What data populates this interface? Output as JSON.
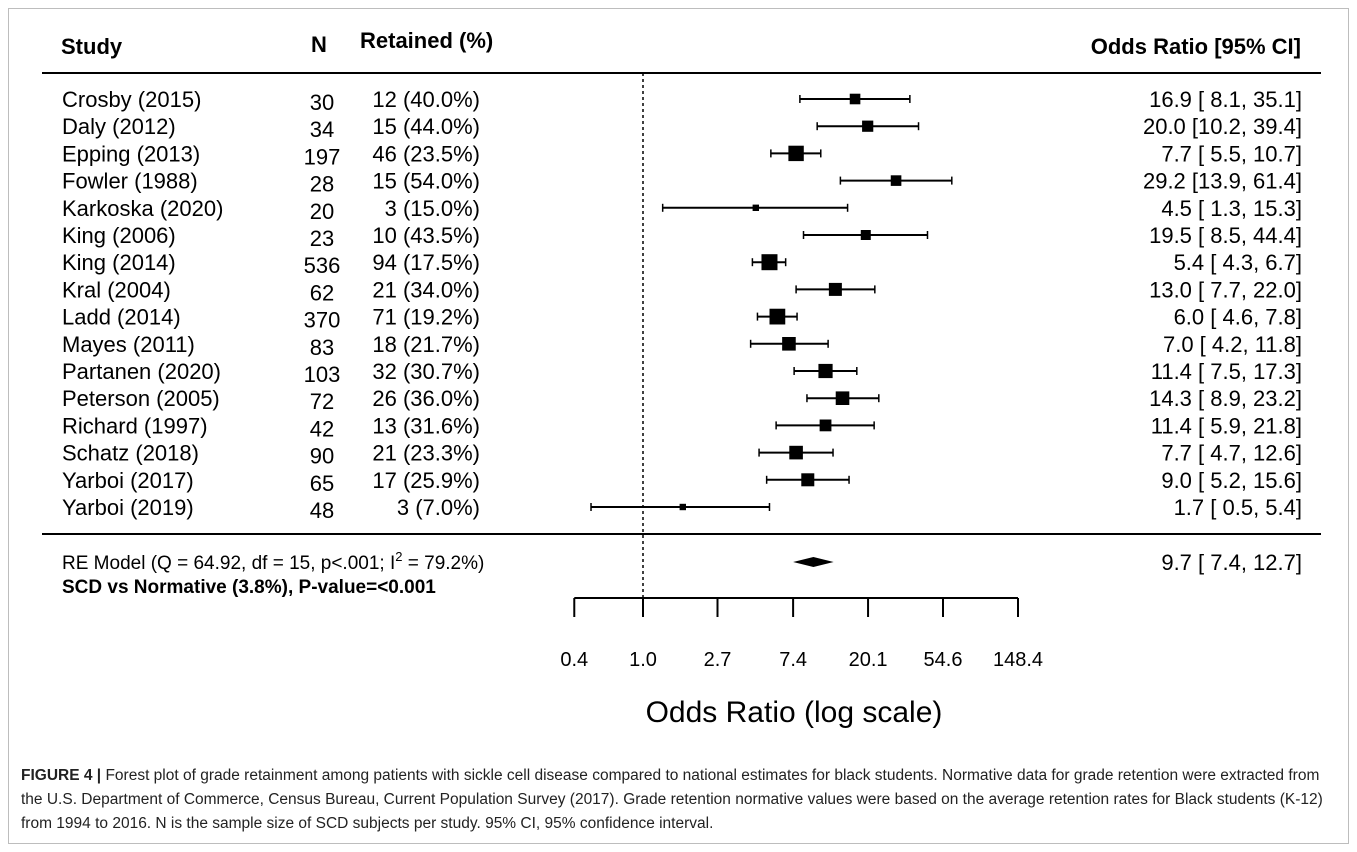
{
  "chart_data": {
    "type": "forest",
    "xscale": "log",
    "header": {
      "study": "Study",
      "n": "N",
      "retained": "Retained (%)",
      "or_ci": "Odds Ratio [95% CI]"
    },
    "studies": [
      {
        "study": "Crosby (2015)",
        "n": "30",
        "retained": "12 (40.0%)",
        "or": 16.9,
        "lo": 8.1,
        "hi": 35.1,
        "label": "16.9 [ 8.1, 35.1]",
        "weight": 0.55
      },
      {
        "study": "Daly (2012)",
        "n": "34",
        "retained": "15 (44.0%)",
        "or": 20.0,
        "lo": 10.2,
        "hi": 39.4,
        "label": "20.0 [10.2, 39.4]",
        "weight": 0.6
      },
      {
        "study": "Epping (2013)",
        "n": "197",
        "retained": "46 (23.5%)",
        "or": 7.7,
        "lo": 5.5,
        "hi": 10.7,
        "label": "7.7 [ 5.5, 10.7]",
        "weight": 0.95
      },
      {
        "study": "Fowler (1988)",
        "n": "28",
        "retained": "15 (54.0%)",
        "or": 29.2,
        "lo": 13.9,
        "hi": 61.4,
        "label": "29.2 [13.9, 61.4]",
        "weight": 0.55
      },
      {
        "study": "Karkoska (2020)",
        "n": "20",
        "retained": "3 (15.0%)",
        "or": 4.5,
        "lo": 1.3,
        "hi": 15.3,
        "label": "4.5 [ 1.3, 15.3]",
        "weight": 0.2
      },
      {
        "study": "King (2006)",
        "n": "23",
        "retained": "10 (43.5%)",
        "or": 19.5,
        "lo": 8.5,
        "hi": 44.4,
        "label": "19.5 [ 8.5, 44.4]",
        "weight": 0.5
      },
      {
        "study": "King (2014)",
        "n": "536",
        "retained": "94 (17.5%)",
        "or": 5.4,
        "lo": 4.3,
        "hi": 6.7,
        "label": "5.4 [ 4.3, 6.7]",
        "weight": 1.0
      },
      {
        "study": "Kral (2004)",
        "n": "62",
        "retained": "21 (34.0%)",
        "or": 13.0,
        "lo": 7.7,
        "hi": 22.0,
        "label": "13.0 [ 7.7, 22.0]",
        "weight": 0.75
      },
      {
        "study": "Ladd (2014)",
        "n": "370",
        "retained": "71 (19.2%)",
        "or": 6.0,
        "lo": 4.6,
        "hi": 7.8,
        "label": "6.0 [ 4.6, 7.8]",
        "weight": 0.98
      },
      {
        "study": "Mayes (2011)",
        "n": "83",
        "retained": "18 (21.7%)",
        "or": 7.0,
        "lo": 4.2,
        "hi": 11.8,
        "label": "7.0 [ 4.2, 11.8]",
        "weight": 0.8
      },
      {
        "study": "Partanen (2020)",
        "n": "103",
        "retained": "32 (30.7%)",
        "or": 11.4,
        "lo": 7.5,
        "hi": 17.3,
        "label": "11.4 [ 7.5, 17.3]",
        "weight": 0.85
      },
      {
        "study": "Peterson (2005)",
        "n": "72",
        "retained": "26 (36.0%)",
        "or": 14.3,
        "lo": 8.9,
        "hi": 23.2,
        "label": "14.3 [ 8.9, 23.2]",
        "weight": 0.8
      },
      {
        "study": "Richard (1997)",
        "n": "42",
        "retained": "13 (31.6%)",
        "or": 11.4,
        "lo": 5.9,
        "hi": 21.8,
        "label": "11.4 [ 5.9, 21.8]",
        "weight": 0.65
      },
      {
        "study": "Schatz (2018)",
        "n": "90",
        "retained": "21 (23.3%)",
        "or": 7.7,
        "lo": 4.7,
        "hi": 12.6,
        "label": "7.7 [ 4.7, 12.6]",
        "weight": 0.8
      },
      {
        "study": "Yarboi (2017)",
        "n": "65",
        "retained": "17 (25.9%)",
        "or": 9.0,
        "lo": 5.2,
        "hi": 15.6,
        "label": "9.0 [ 5.2, 15.6]",
        "weight": 0.75
      },
      {
        "study": "Yarboi (2019)",
        "n": "48",
        "retained": "3 (7.0%)",
        "or": 1.7,
        "lo": 0.5,
        "hi": 5.4,
        "label": "1.7 [ 0.5, 5.4]",
        "weight": 0.2
      }
    ],
    "summary": {
      "model_label_pre": "RE Model (Q = 64.92, df = 15, p<.001; I",
      "model_label_sup": "2",
      "model_label_post": " = 79.2%)",
      "comparison": "SCD vs Normative (3.8%), P-value=<0.001",
      "or": 9.7,
      "lo": 7.4,
      "hi": 12.7,
      "label": "9.7 [ 7.4, 12.7]"
    },
    "reference_line": 1.0,
    "x_ticks": [
      0.4,
      1.0,
      2.7,
      7.4,
      20.1,
      54.6,
      148.4
    ],
    "x_tick_labels": [
      "0.4",
      "1.0",
      "2.7",
      "7.4",
      "20.1",
      "54.6",
      "148.4"
    ],
    "xlabel": "Odds Ratio (log scale)"
  },
  "caption": {
    "label": "FIGURE 4 |",
    "text": " Forest plot of grade retainment among patients with sickle cell disease compared to national estimates for black students. Normative data for grade retention were extracted from the U.S. Department of Commerce, Census Bureau, Current Population Survey (2017). Grade retention normative values were based on the average retention rates for Black students (K-12) from 1994 to 2016. N is the sample size of SCD subjects per study. 95% CI, 95% confidence interval."
  }
}
